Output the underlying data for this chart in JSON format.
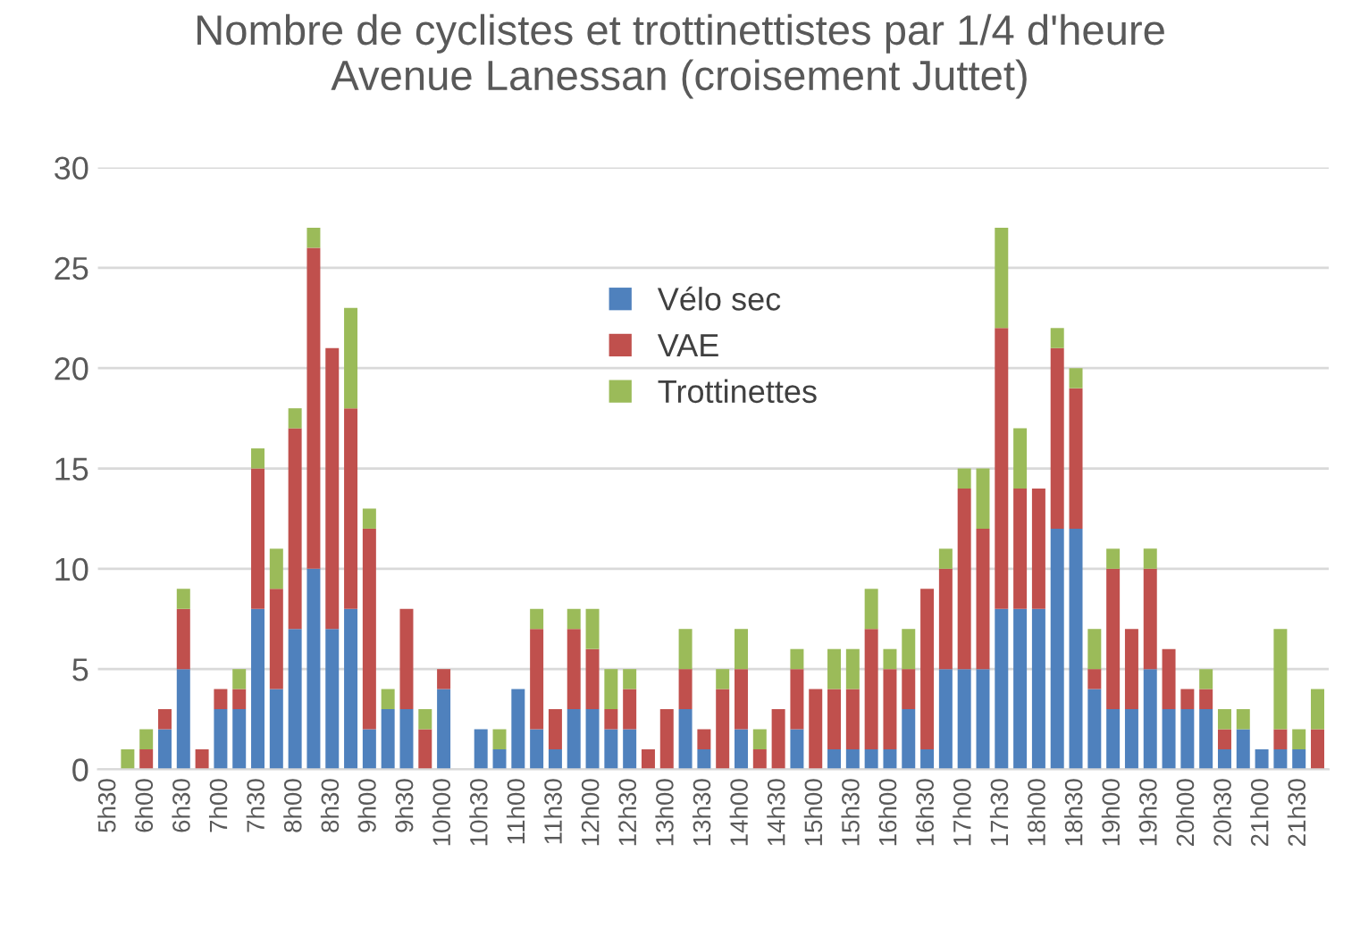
{
  "chart_data": {
    "type": "bar",
    "stacked": true,
    "title": "Nombre de cyclistes et trottinettistes par 1/4 d'heure\nAvenue Lanessan (croisement Juttet)",
    "categories": [
      "5h30",
      null,
      "6h00",
      null,
      "6h30",
      null,
      "7h00",
      null,
      "7h30",
      null,
      "8h00",
      null,
      "8h30",
      null,
      "9h00",
      null,
      "9h30",
      null,
      "10h00",
      null,
      "10h30",
      null,
      "11h00",
      null,
      "11h30",
      null,
      "12h00",
      null,
      "12h30",
      null,
      "13h00",
      null,
      "13h30",
      null,
      "14h00",
      null,
      "14h30",
      null,
      "15h00",
      null,
      "15h30",
      null,
      "16h00",
      null,
      "16h30",
      null,
      "17h00",
      null,
      "17h30",
      null,
      "18h00",
      null,
      "18h30",
      null,
      "19h00",
      null,
      "19h30",
      null,
      "20h00",
      null,
      "20h30",
      null,
      "21h00",
      null,
      "21h30",
      null
    ],
    "series": [
      {
        "name": "Vélo sec",
        "color": "#4f81bd",
        "values": [
          0,
          0,
          0,
          2,
          5,
          0,
          3,
          3,
          8,
          4,
          7,
          10,
          7,
          8,
          2,
          3,
          3,
          0,
          4,
          0,
          2,
          1,
          4,
          2,
          1,
          3,
          3,
          2,
          2,
          0,
          0,
          3,
          1,
          0,
          2,
          0,
          0,
          2,
          0,
          1,
          1,
          1,
          1,
          3,
          1,
          5,
          5,
          5,
          8,
          8,
          8,
          12,
          12,
          4,
          3,
          3,
          5,
          3,
          3,
          3,
          1,
          2,
          1,
          1,
          1,
          0
        ]
      },
      {
        "name": "VAE",
        "color": "#c0504d",
        "values": [
          0,
          0,
          1,
          1,
          3,
          1,
          1,
          1,
          7,
          5,
          10,
          16,
          14,
          10,
          10,
          0,
          5,
          2,
          1,
          0,
          0,
          0,
          0,
          5,
          2,
          4,
          3,
          1,
          2,
          1,
          3,
          2,
          1,
          4,
          3,
          1,
          3,
          3,
          4,
          3,
          3,
          6,
          4,
          2,
          8,
          5,
          9,
          7,
          14,
          6,
          6,
          9,
          7,
          1,
          7,
          4,
          5,
          3,
          1,
          1,
          1,
          0,
          0,
          1,
          0,
          2
        ]
      },
      {
        "name": "Trottinettes",
        "color": "#9bbb59",
        "values": [
          0,
          1,
          1,
          0,
          1,
          0,
          0,
          1,
          1,
          2,
          1,
          1,
          0,
          5,
          1,
          1,
          0,
          1,
          0,
          0,
          0,
          1,
          0,
          1,
          0,
          1,
          2,
          2,
          1,
          0,
          0,
          2,
          0,
          1,
          2,
          1,
          0,
          1,
          0,
          2,
          2,
          2,
          1,
          2,
          0,
          1,
          1,
          3,
          5,
          3,
          0,
          1,
          1,
          2,
          1,
          0,
          1,
          0,
          0,
          1,
          1,
          1,
          0,
          5,
          1,
          2
        ]
      }
    ],
    "ylim": [
      0,
      30
    ],
    "yticks": [
      0,
      5,
      10,
      15,
      20,
      25,
      30
    ],
    "grid": "y",
    "legend": "top"
  }
}
